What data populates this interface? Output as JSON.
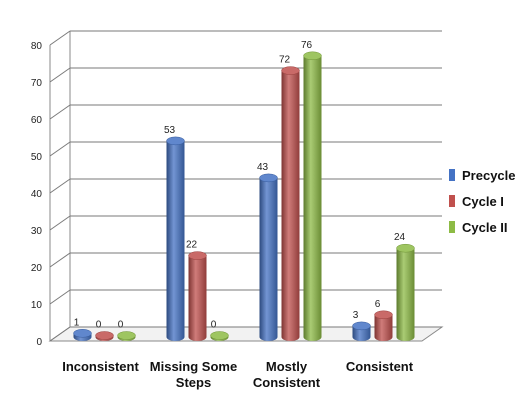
{
  "chart_data": {
    "type": "bar",
    "style": "3d-cylinder",
    "categories": [
      "Inconsistent",
      "Missing Some Steps",
      "Mostly Consistent",
      "Consistent"
    ],
    "series": [
      {
        "name": "Precycle",
        "values": [
          1,
          53,
          43,
          3
        ],
        "color": "#4472C4"
      },
      {
        "name": "Cycle I",
        "values": [
          0,
          22,
          72,
          6
        ],
        "color": "#C0504D"
      },
      {
        "name": "Cycle II",
        "values": [
          0,
          0,
          76,
          24
        ],
        "color": "#8DBB45"
      }
    ],
    "title": "",
    "xlabel": "",
    "ylabel": "",
    "ylim": [
      0,
      80
    ],
    "yticks": [
      0,
      10,
      20,
      30,
      40,
      50,
      60,
      70,
      80
    ],
    "grid": true,
    "legend": "right"
  }
}
